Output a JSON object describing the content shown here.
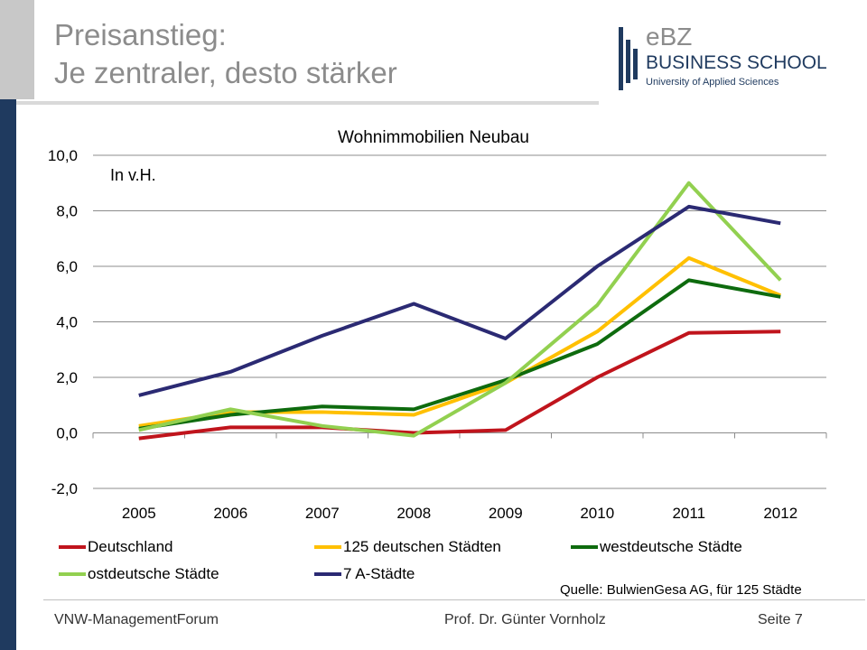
{
  "slide": {
    "title_line1": "Preisanstieg:",
    "title_line2": "Je zentraler, desto stärker"
  },
  "logo": {
    "mark": "eBZ",
    "name": "BUSINESS SCHOOL",
    "sub": "University of Applied Sciences"
  },
  "chart_data": {
    "type": "line",
    "title": "Wohnimmobilien Neubau",
    "annotation": "In v.H.",
    "categories": [
      "2005",
      "2006",
      "2007",
      "2008",
      "2009",
      "2010",
      "2011",
      "2012"
    ],
    "ylim": [
      -2.0,
      10.0
    ],
    "yticks": [
      "10,0",
      "8,0",
      "6,0",
      "4,0",
      "2,0",
      "0,0",
      "-2,0"
    ],
    "grid": true,
    "legend_position": "bottom",
    "series": [
      {
        "name": "Deutschland",
        "color": "#c0141c",
        "values": [
          -0.2,
          0.2,
          0.2,
          0.0,
          0.1,
          2.0,
          3.6,
          3.65
        ]
      },
      {
        "name": "125 deutschen Städten",
        "color": "#ffc000",
        "values": [
          0.25,
          0.75,
          0.75,
          0.65,
          1.8,
          3.65,
          6.3,
          4.95
        ]
      },
      {
        "name": "westdeutsche Städte",
        "color": "#0e6b0e",
        "values": [
          0.15,
          0.65,
          0.95,
          0.85,
          1.9,
          3.2,
          5.5,
          4.9
        ]
      },
      {
        "name": "ostdeutsche Städte",
        "color": "#92d050",
        "values": [
          0.1,
          0.85,
          0.25,
          -0.1,
          1.8,
          4.6,
          9.0,
          5.5
        ]
      },
      {
        "name": "7 A-Städte",
        "color": "#2b2a73",
        "values": [
          1.35,
          2.2,
          3.5,
          4.65,
          3.4,
          6.0,
          8.15,
          7.55
        ]
      }
    ]
  },
  "source_note": "Quelle: BulwienGesa AG, für 125 Städte",
  "footer": {
    "left": "VNW-ManagementForum",
    "center": "Prof. Dr. Günter Vornholz",
    "right": "Seite 7"
  }
}
